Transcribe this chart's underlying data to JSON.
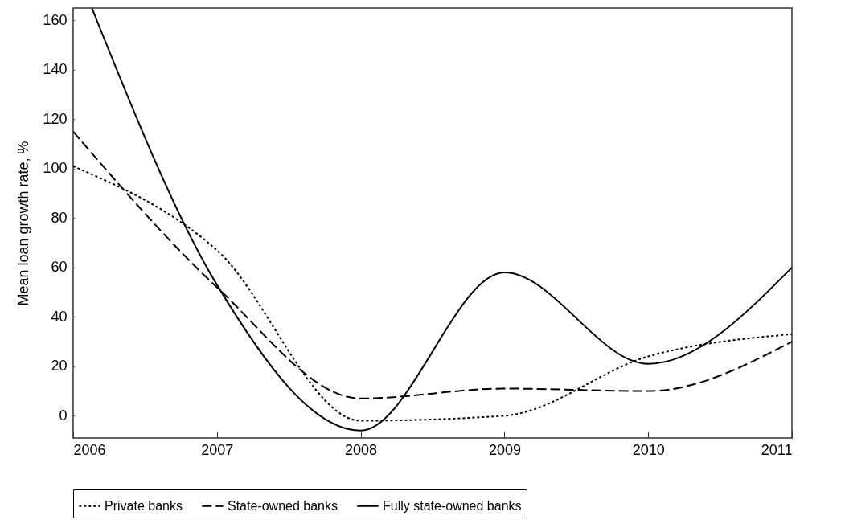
{
  "chart_data": {
    "type": "line",
    "ylabel": "Mean loan growth rate, %",
    "x": [
      2006,
      2007,
      2008,
      2009,
      2010,
      2011
    ],
    "xlim": [
      2006,
      2011
    ],
    "xticks": [
      2006,
      2007,
      2008,
      2009,
      2010,
      2011
    ],
    "ylim": [
      -9,
      165
    ],
    "yticks": [
      0,
      20,
      40,
      60,
      80,
      100,
      120,
      140,
      160
    ],
    "grid": false,
    "legend": "bottom",
    "marker": "none",
    "series": [
      {
        "name": "Private banks",
        "color": "#000000",
        "line_style": "dotted",
        "values": [
          101,
          67,
          -2,
          0,
          24,
          33
        ]
      },
      {
        "name": "State-owned banks",
        "color": "#000000",
        "line_style": "dashed",
        "values": [
          115,
          52,
          7,
          11,
          10,
          30
        ]
      },
      {
        "name": "Fully state-owned banks",
        "color": "#000000",
        "line_style": "solid",
        "x": [
          2006.13,
          2007,
          2008,
          2009,
          2010,
          2011
        ],
        "values": [
          165,
          53,
          -6,
          58,
          21,
          60
        ]
      }
    ]
  }
}
